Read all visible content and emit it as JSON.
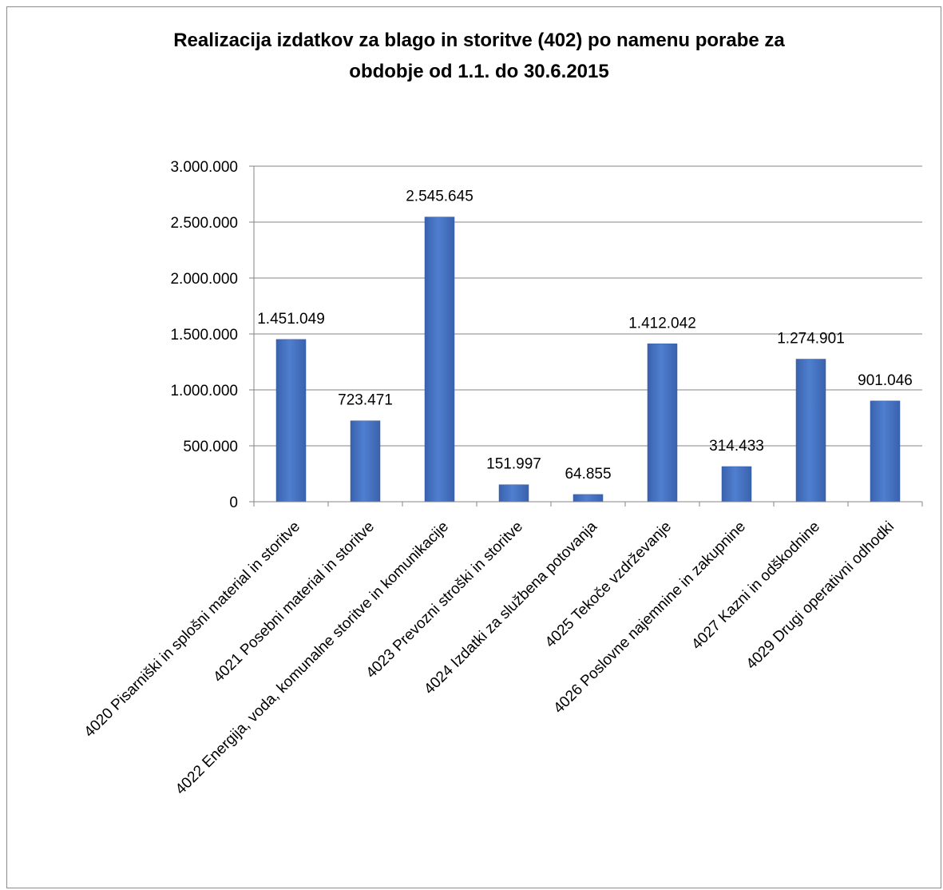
{
  "chart_data": {
    "type": "bar",
    "title_lines": [
      "Realizacija izdatkov za blago in storitve (402) po namenu porabe za",
      "obdobje od 1.1. do 30.6.2015"
    ],
    "categories": [
      "4020 Pisarniški in splošni material in storitve",
      "4021 Posebni material in storitve",
      "4022 Energija, voda, komunalne storitve in komunikacije",
      "4023 Prevozni stroški in storitve",
      "4024 Izdatki za službena potovanja",
      "4025 Tekoče vzdrževanje",
      "4026 Poslovne najemnine in zakupnine",
      "4027 Kazni in odškodnine",
      "4029 Drugi operativni odhodki"
    ],
    "values": [
      1451049,
      723471,
      2545645,
      151997,
      64855,
      1412042,
      314433,
      1274901,
      901046
    ],
    "value_labels": [
      "1.451.049",
      "723.471",
      "2.545.645",
      "151.997",
      "64.855",
      "1.412.042",
      "314.433",
      "1.274.901",
      "901.046"
    ],
    "yticks": [
      0,
      500000,
      1000000,
      1500000,
      2000000,
      2500000,
      3000000
    ],
    "ytick_labels": [
      "0",
      "500.000",
      "1.000.000",
      "1.500.000",
      "2.000.000",
      "2.500.000",
      "3.000.000"
    ],
    "ylim": [
      0,
      3000000
    ],
    "grid": "horizontal",
    "legend": "none",
    "bar_color": "#4472c4",
    "xlabel": "",
    "ylabel": ""
  }
}
